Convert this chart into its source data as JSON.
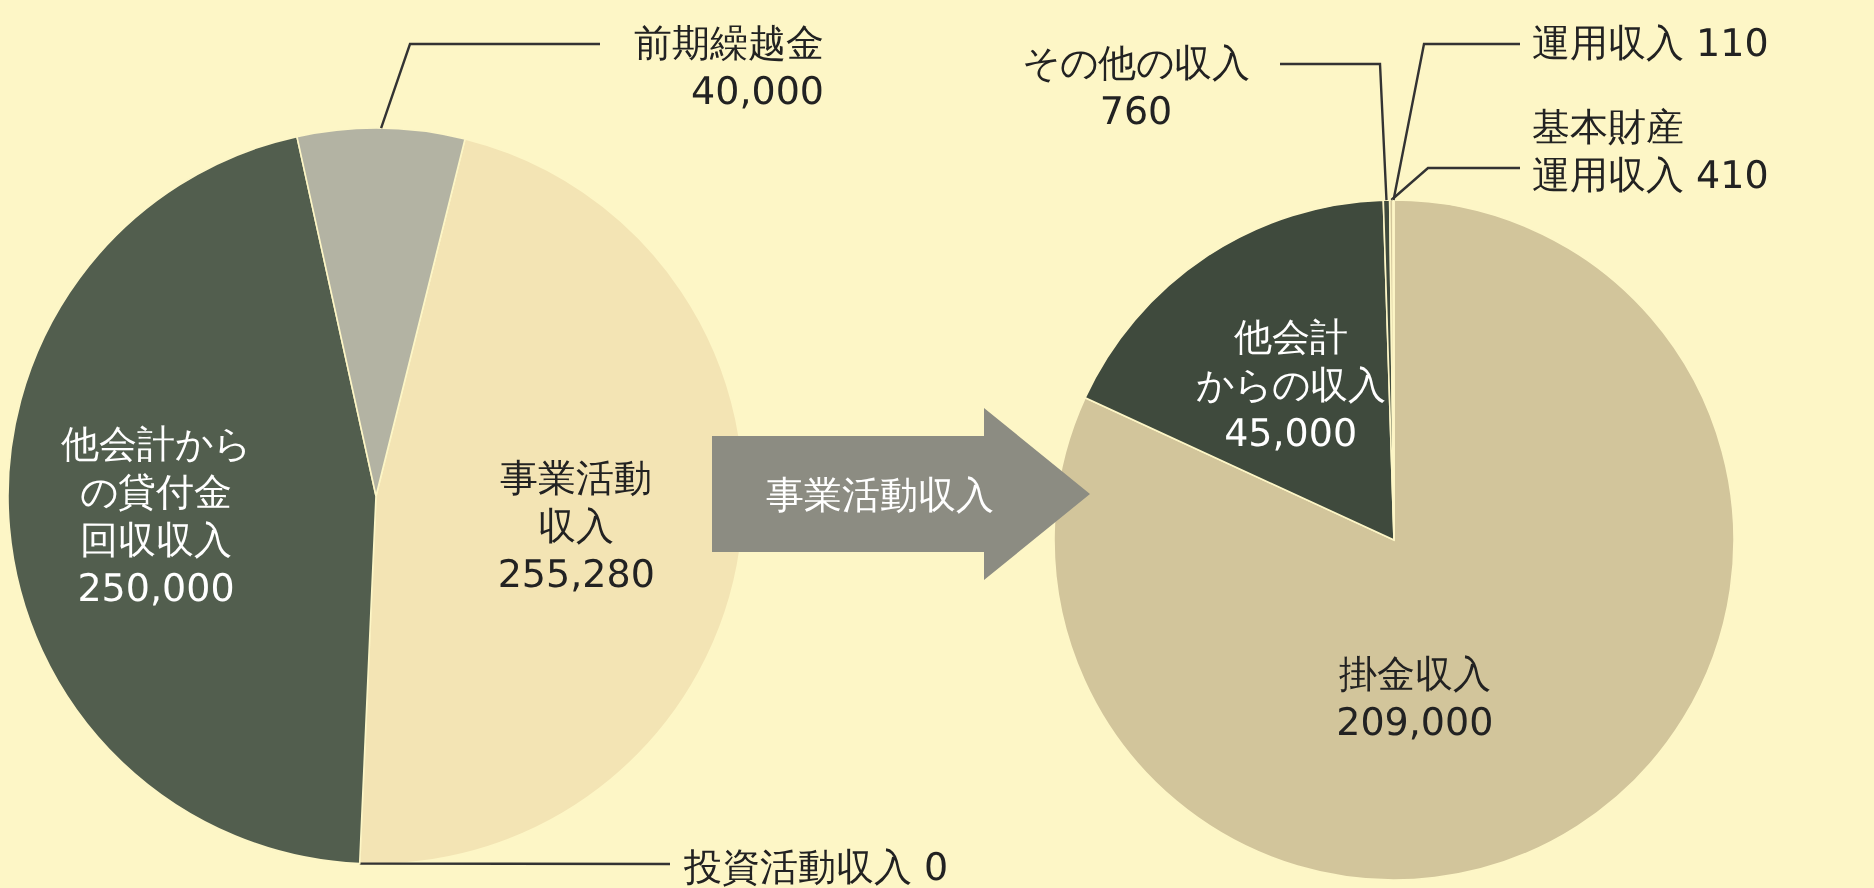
{
  "chart_data": [
    {
      "type": "pie",
      "categories": [
        "事業活動収入",
        "投資活動収入",
        "他会計からの貸付金回収収入",
        "前期繰越金"
      ],
      "values": [
        255280,
        0,
        250000,
        40000
      ],
      "value_labels": [
        "255,280",
        "0",
        "250,000",
        "40,000"
      ],
      "colors": [
        "#f3e4b4",
        "#f3e4b4",
        "#525e4e",
        "#b3b3a3"
      ]
    },
    {
      "type": "pie",
      "categories": [
        "掛金収入",
        "他会計からの収入",
        "その他の収入",
        "基本財産運用収入",
        "運用収入"
      ],
      "values": [
        209000,
        45000,
        760,
        410,
        110
      ],
      "value_labels": [
        "209,000",
        "45,000",
        "760",
        "410",
        "110"
      ],
      "colors": [
        "#d2c59b",
        "#3f4a3d",
        "#3f4a3d",
        "#d2c59b",
        "#d2c59b"
      ],
      "annotations": [
        "事業活動収入"
      ]
    }
  ]
}
